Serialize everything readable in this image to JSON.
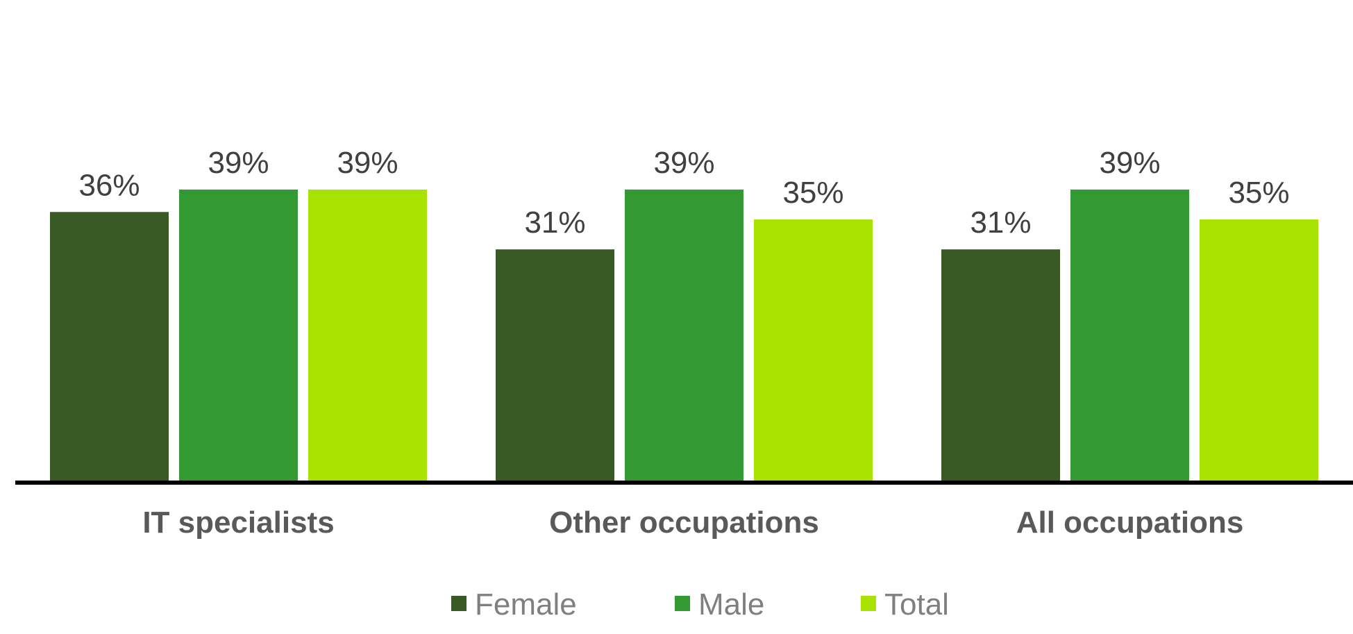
{
  "chart_data": {
    "type": "bar",
    "categories": [
      "IT specialists",
      "Other occupations",
      "All occupations"
    ],
    "series": [
      {
        "name": "Female",
        "values": [
          36,
          31,
          31
        ],
        "labels": [
          "36%",
          "31%",
          "31%"
        ],
        "color": "#3a5a25"
      },
      {
        "name": "Male",
        "values": [
          39,
          39,
          39
        ],
        "labels": [
          "39%",
          "39%",
          "39%"
        ],
        "color": "#339933"
      },
      {
        "name": "Total",
        "values": [
          39,
          35,
          35
        ],
        "labels": [
          "39%",
          "35%",
          "35%"
        ],
        "color": "#a8e200"
      }
    ],
    "ylim": [
      0,
      52
    ],
    "grid": false,
    "legend_position": "bottom",
    "axis_color": "#000000"
  }
}
